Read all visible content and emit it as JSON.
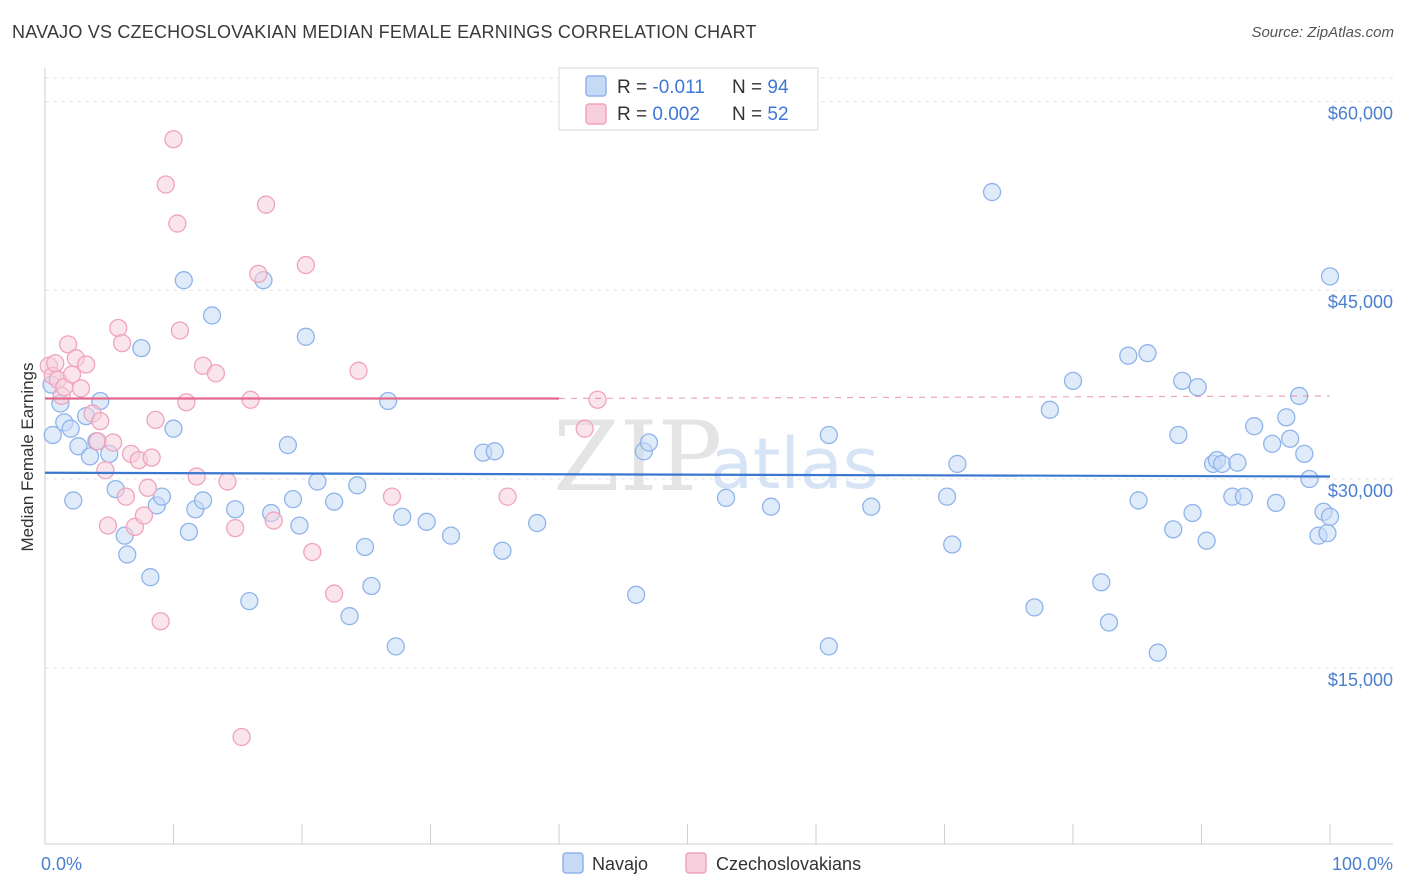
{
  "title": "NAVAJO VS CZECHOSLOVAKIAN MEDIAN FEMALE EARNINGS CORRELATION CHART",
  "source": "Source: ZipAtlas.com",
  "watermark": {
    "zip": "ZIP",
    "atlas": "atlas"
  },
  "chart_data": {
    "type": "scatter",
    "ylabel": "Median Female Earnings",
    "x_tick_labels": [
      "0.0%",
      "100.0%"
    ],
    "y_ticks": [
      {
        "value": 15000,
        "label": "$15,000"
      },
      {
        "value": 30000,
        "label": "$30,000"
      },
      {
        "value": 45000,
        "label": "$45,000"
      },
      {
        "value": 60000,
        "label": "$60,000"
      }
    ],
    "xlim": [
      0,
      100
    ],
    "ylim": [
      1000,
      62500
    ],
    "grid": true,
    "legend": {
      "placement": "top-center",
      "entries": [
        {
          "r_label": "R = ",
          "r": "-0.011",
          "n_label": "N = ",
          "n": "94"
        },
        {
          "r_label": "R = ",
          "r": "0.002",
          "n_label": "N = ",
          "n": "52"
        }
      ]
    },
    "series": [
      {
        "name": "Navajo",
        "color": "#8fb4ea",
        "fill": "#c7daf5",
        "line_color": "#3a78cf",
        "trend": {
          "x": [
            0,
            100
          ],
          "y": [
            30500,
            30200
          ]
        },
        "points": [
          [
            0.5,
            37500
          ],
          [
            0.6,
            33500
          ],
          [
            1.2,
            36000
          ],
          [
            1.5,
            34500
          ],
          [
            2.0,
            34000
          ],
          [
            2.2,
            28300
          ],
          [
            2.6,
            32600
          ],
          [
            3.2,
            35000
          ],
          [
            3.5,
            31800
          ],
          [
            4.0,
            33000
          ],
          [
            4.3,
            36200
          ],
          [
            5.0,
            32000
          ],
          [
            5.5,
            29200
          ],
          [
            6.2,
            25500
          ],
          [
            6.4,
            24000
          ],
          [
            7.5,
            40400
          ],
          [
            8.2,
            22200
          ],
          [
            8.7,
            27900
          ],
          [
            9.1,
            28600
          ],
          [
            10.0,
            34000
          ],
          [
            10.8,
            45800
          ],
          [
            11.2,
            25800
          ],
          [
            11.7,
            27600
          ],
          [
            12.3,
            28300
          ],
          [
            13.0,
            43000
          ],
          [
            14.8,
            27600
          ],
          [
            15.9,
            20300
          ],
          [
            17.0,
            45800
          ],
          [
            17.6,
            27300
          ],
          [
            18.9,
            32700
          ],
          [
            19.3,
            28400
          ],
          [
            19.8,
            26300
          ],
          [
            20.3,
            41300
          ],
          [
            21.2,
            29800
          ],
          [
            22.5,
            28200
          ],
          [
            23.7,
            19100
          ],
          [
            24.3,
            29500
          ],
          [
            24.9,
            24600
          ],
          [
            25.4,
            21500
          ],
          [
            26.7,
            36200
          ],
          [
            27.3,
            16700
          ],
          [
            27.8,
            27000
          ],
          [
            29.7,
            26600
          ],
          [
            31.6,
            25500
          ],
          [
            34.1,
            32100
          ],
          [
            35.0,
            32200
          ],
          [
            35.6,
            24300
          ],
          [
            38.3,
            26500
          ],
          [
            46.0,
            20800
          ],
          [
            46.6,
            32200
          ],
          [
            47.0,
            32900
          ],
          [
            53.0,
            28500
          ],
          [
            56.5,
            27800
          ],
          [
            61.0,
            16700
          ],
          [
            61.0,
            33500
          ],
          [
            64.3,
            27800
          ],
          [
            70.2,
            28600
          ],
          [
            70.6,
            24800
          ],
          [
            71.0,
            31200
          ],
          [
            73.7,
            52800
          ],
          [
            77.0,
            19800
          ],
          [
            78.2,
            35500
          ],
          [
            80.0,
            37800
          ],
          [
            82.2,
            21800
          ],
          [
            82.8,
            18600
          ],
          [
            84.3,
            39800
          ],
          [
            85.1,
            28300
          ],
          [
            85.8,
            40000
          ],
          [
            86.6,
            16200
          ],
          [
            87.8,
            26000
          ],
          [
            88.2,
            33500
          ],
          [
            88.5,
            37800
          ],
          [
            89.3,
            27300
          ],
          [
            89.7,
            37300
          ],
          [
            90.4,
            25100
          ],
          [
            90.9,
            31200
          ],
          [
            91.2,
            31500
          ],
          [
            91.6,
            31200
          ],
          [
            92.4,
            28600
          ],
          [
            92.8,
            31300
          ],
          [
            93.3,
            28600
          ],
          [
            94.1,
            34200
          ],
          [
            95.5,
            32800
          ],
          [
            95.8,
            28100
          ],
          [
            96.6,
            34900
          ],
          [
            96.9,
            33200
          ],
          [
            97.6,
            36600
          ],
          [
            98.0,
            32000
          ],
          [
            98.4,
            30000
          ],
          [
            99.1,
            25500
          ],
          [
            99.5,
            27400
          ],
          [
            99.8,
            25700
          ],
          [
            100.0,
            27000
          ],
          [
            100.0,
            46100
          ]
        ]
      },
      {
        "name": "Czechoslovakians",
        "color": "#f0a3bf",
        "fill": "#f8cfdd",
        "line_color": "#e2688f",
        "trend": {
          "x": [
            0,
            40
          ],
          "y": [
            36400,
            36400
          ]
        },
        "trend_dashed": {
          "x": [
            40,
            100
          ],
          "y": [
            36400,
            36600
          ]
        },
        "points": [
          [
            0.3,
            39000
          ],
          [
            0.6,
            38200
          ],
          [
            0.8,
            39200
          ],
          [
            1.0,
            37900
          ],
          [
            1.3,
            36600
          ],
          [
            1.5,
            37300
          ],
          [
            1.8,
            40700
          ],
          [
            2.1,
            38300
          ],
          [
            2.4,
            39600
          ],
          [
            2.8,
            37200
          ],
          [
            3.2,
            39100
          ],
          [
            3.7,
            35200
          ],
          [
            4.1,
            33000
          ],
          [
            4.3,
            34600
          ],
          [
            4.7,
            30700
          ],
          [
            4.9,
            26300
          ],
          [
            5.3,
            32900
          ],
          [
            5.7,
            42000
          ],
          [
            6.0,
            40800
          ],
          [
            6.3,
            28600
          ],
          [
            6.7,
            32000
          ],
          [
            7.0,
            26200
          ],
          [
            7.3,
            31500
          ],
          [
            7.7,
            27100
          ],
          [
            8.0,
            29300
          ],
          [
            8.3,
            31700
          ],
          [
            8.6,
            34700
          ],
          [
            9.0,
            18700
          ],
          [
            9.4,
            53400
          ],
          [
            10.0,
            57000
          ],
          [
            10.3,
            50300
          ],
          [
            10.5,
            41800
          ],
          [
            11.0,
            36100
          ],
          [
            11.8,
            30200
          ],
          [
            12.3,
            39000
          ],
          [
            13.3,
            38400
          ],
          [
            14.2,
            29800
          ],
          [
            14.8,
            26100
          ],
          [
            15.3,
            9500
          ],
          [
            16.0,
            36300
          ],
          [
            16.6,
            46300
          ],
          [
            17.2,
            51800
          ],
          [
            17.8,
            26700
          ],
          [
            20.3,
            47000
          ],
          [
            20.8,
            24200
          ],
          [
            22.5,
            20900
          ],
          [
            24.4,
            38600
          ],
          [
            27.0,
            28600
          ],
          [
            36.0,
            28600
          ],
          [
            41.0,
            60000
          ],
          [
            42.0,
            34000
          ],
          [
            43.0,
            36300
          ]
        ]
      }
    ]
  }
}
